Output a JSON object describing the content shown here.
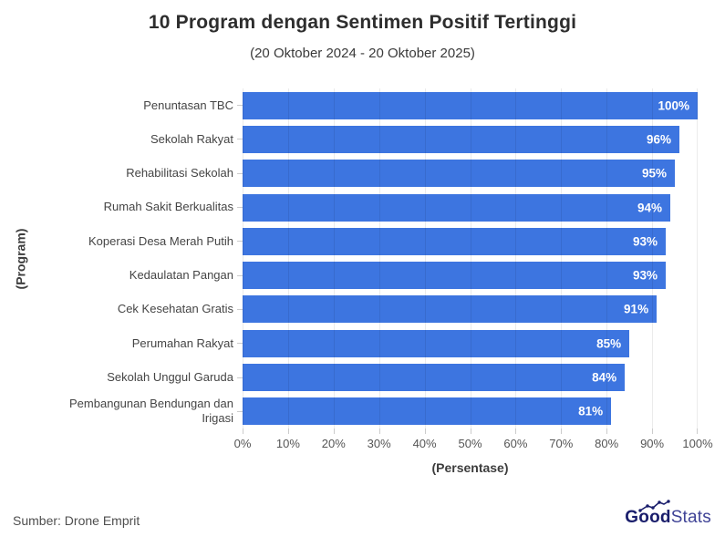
{
  "chart": {
    "title": "10 Program dengan Sentimen Positif Tertinggi",
    "subtitle": "(20 Oktober 2024 - 20 Oktober 2025)",
    "xlabel": "(Persentase)",
    "ylabel": "(Program)"
  },
  "chart_data": {
    "type": "bar",
    "orientation": "horizontal",
    "title": "10 Program dengan Sentimen Positif Tertinggi",
    "subtitle": "(20 Oktober 2024 - 20 Oktober 2025)",
    "xlabel": "(Persentase)",
    "ylabel": "(Program)",
    "categories": [
      "Penuntasan TBC",
      "Sekolah Rakyat",
      "Rehabilitasi Sekolah",
      "Rumah Sakit Berkualitas",
      "Koperasi Desa Merah Putih",
      "Kedaulatan Pangan",
      "Cek Kesehatan Gratis",
      "Perumahan Rakyat",
      "Sekolah Unggul Garuda",
      "Pembangunan Bendungan dan Irigasi"
    ],
    "values": [
      100,
      96,
      95,
      94,
      93,
      93,
      91,
      85,
      84,
      81
    ],
    "value_labels": [
      "100%",
      "96%",
      "95%",
      "94%",
      "93%",
      "93%",
      "91%",
      "85%",
      "84%",
      "81%"
    ],
    "xlim": [
      0,
      100
    ],
    "x_ticks": [
      "0%",
      "10%",
      "20%",
      "30%",
      "40%",
      "50%",
      "60%",
      "70%",
      "80%",
      "90%",
      "100%"
    ],
    "grid": "vertical",
    "legend": "none",
    "bar_color": "#3d75e0",
    "value_label_color": "#ffffff"
  },
  "footer": {
    "source": "Sumber: Drone Emprit",
    "logo": {
      "part1": "Good",
      "part2": "Stats",
      "color_bold": "#191d6b",
      "color_light": "#3f4396"
    }
  }
}
